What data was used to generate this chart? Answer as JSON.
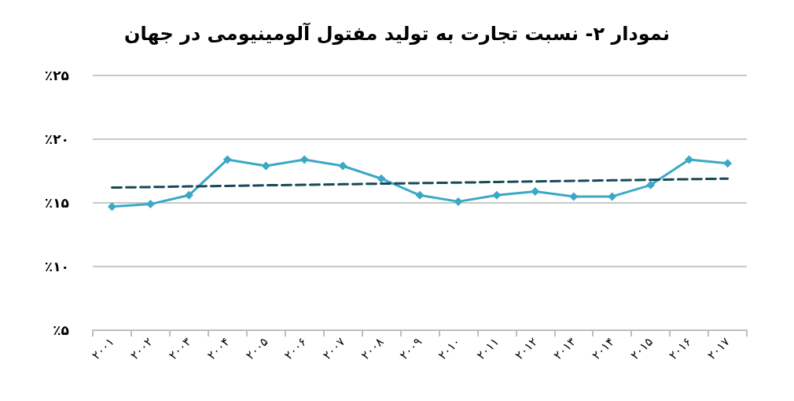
{
  "chart_data": {
    "type": "line",
    "title": "نمودار ۲- نسبت تجارت به تولید مفتول آلومینیومی در جهان",
    "categories": [
      "۲۰۰۱",
      "۲۰۰۲",
      "۲۰۰۳",
      "۲۰۰۴",
      "۲۰۰۵",
      "۲۰۰۶",
      "۲۰۰۷",
      "۲۰۰۸",
      "۲۰۰۹",
      "۲۰۱۰",
      "۲۰۱۱",
      "۲۰۱۲",
      "۲۰۱۳",
      "۲۰۱۴",
      "۲۰۱۵",
      "۲۰۱۶",
      "۲۰۱۷"
    ],
    "series": [
      {
        "color": "#3ba8c6",
        "marker": "diamond",
        "line_style": "solid",
        "values": [
          14.7,
          14.9,
          15.6,
          18.4,
          17.9,
          18.4,
          17.9,
          16.9,
          15.6,
          15.1,
          15.6,
          15.9,
          15.5,
          15.5,
          16.4,
          18.4,
          18.1
        ]
      },
      {
        "type": "line",
        "color": "#17495a",
        "marker": "none",
        "line_style": "dashed",
        "values": [
          16.2,
          16.24,
          16.29,
          16.33,
          16.38,
          16.42,
          16.46,
          16.51,
          16.55,
          16.59,
          16.64,
          16.68,
          16.73,
          16.77,
          16.81,
          16.86,
          16.9
        ]
      }
    ],
    "ylim": [
      5,
      25
    ],
    "yticks": [
      {
        "value": 5,
        "label": "٪۵"
      },
      {
        "value": 10,
        "label": "٪۱۰"
      },
      {
        "value": 15,
        "label": "٪۱۵"
      },
      {
        "value": 20,
        "label": "٪۲۰"
      },
      {
        "value": 25,
        "label": "٪۲۵"
      }
    ],
    "grid": "y"
  }
}
